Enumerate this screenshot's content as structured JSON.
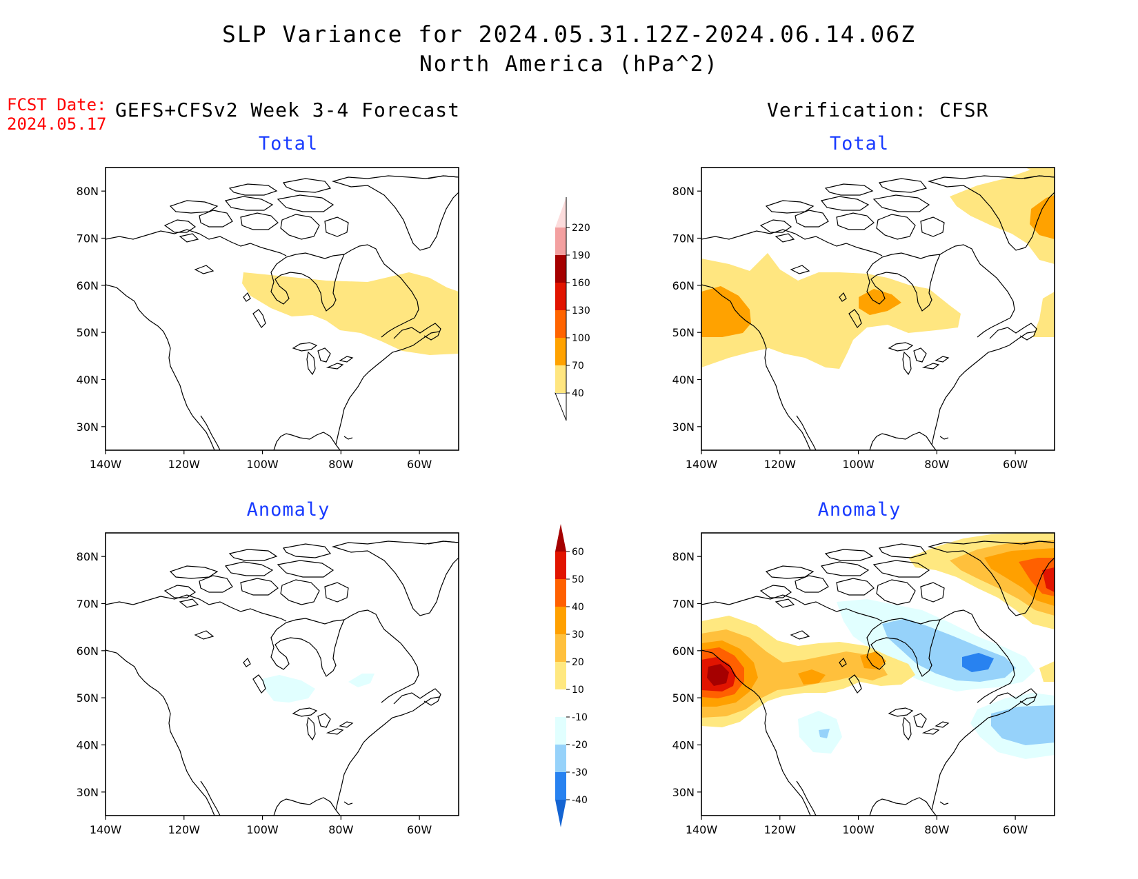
{
  "header": {
    "title": "SLP Variance for 2024.05.31.12Z-2024.06.14.06Z",
    "subtitle": "North America (hPa^2)",
    "fcst_label": "FCST Date:",
    "fcst_date": "2024.05.17",
    "left_heading": "GEFS+CFSv2 Week 3-4 Forecast",
    "right_heading": "Verification: CFSR"
  },
  "map": {
    "lat_ticks": [
      "80N",
      "70N",
      "60N",
      "50N",
      "40N",
      "30N"
    ],
    "lon_ticks": [
      "140W",
      "120W",
      "100W",
      "80W",
      "60W"
    ],
    "lon_range": [
      -140,
      -50
    ],
    "lat_range": [
      25,
      85
    ]
  },
  "panels": [
    {
      "id": "forecast-total",
      "title": "Total"
    },
    {
      "id": "verification-total",
      "title": "Total"
    },
    {
      "id": "forecast-anomaly",
      "title": "Anomaly"
    },
    {
      "id": "verification-anomaly",
      "title": "Anomaly"
    }
  ],
  "colorbars": {
    "total": {
      "labels": [
        "40",
        "70",
        "100",
        "130",
        "160",
        "190",
        "220"
      ],
      "colors": [
        "#ffe680",
        "#ffa200",
        "#ff6400",
        "#e11400",
        "#a50000",
        "#f3a0a0",
        "#fcdcdc"
      ]
    },
    "anomaly": {
      "labels": [
        "-40",
        "-30",
        "-20",
        "-10",
        "10",
        "20",
        "30",
        "40",
        "50",
        "60"
      ],
      "colors": [
        "#1464d2",
        "#2882f0",
        "#96d2fa",
        "#e1ffff",
        "#ffffff",
        "#ffe880",
        "#ffc03c",
        "#ffa000",
        "#ff6000",
        "#e11400",
        "#a50000"
      ]
    }
  }
}
